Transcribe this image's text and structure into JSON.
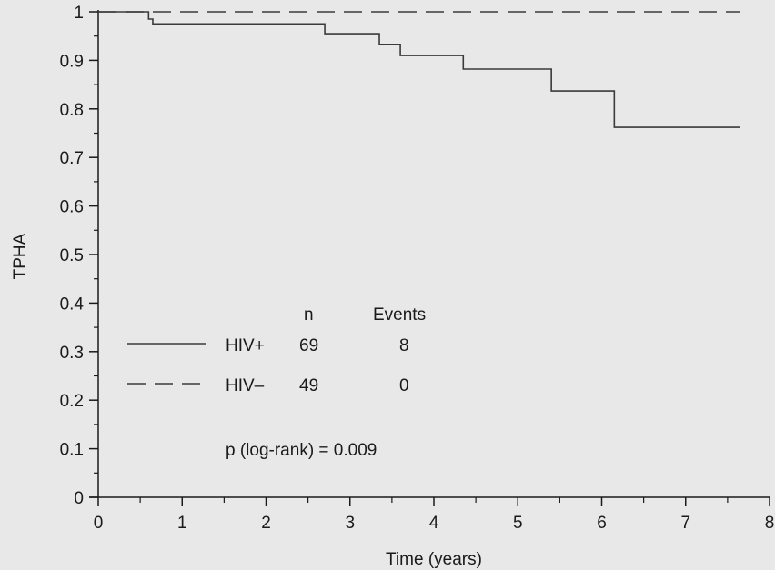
{
  "chart_data": {
    "type": "line",
    "subtype": "step (Kaplan-Meier survival)",
    "title": "",
    "xlabel": "Time (years)",
    "ylabel": "TPHA",
    "xlim": [
      0,
      8
    ],
    "ylim": [
      0,
      1
    ],
    "x_ticks": [
      0,
      1,
      2,
      3,
      4,
      5,
      6,
      7,
      8
    ],
    "y_ticks": [
      0,
      0.1,
      0.2,
      0.3,
      0.4,
      0.5,
      0.6,
      0.7,
      0.8,
      0.9,
      1
    ],
    "y_tick_labels": [
      "0",
      "0.1",
      "0.2",
      "0.3",
      "0.4",
      "0.5",
      "0.6",
      "0.7",
      "0.8",
      "0.9",
      "1"
    ],
    "x_tick_labels": [
      "0",
      "1",
      "2",
      "3",
      "4",
      "5",
      "6",
      "7",
      "8"
    ],
    "grid": false,
    "series": [
      {
        "name": "HIV+",
        "style": "solid",
        "color": "#3a3a3a",
        "steps": [
          [
            0,
            1.0
          ],
          [
            0.6,
            0.985
          ],
          [
            0.65,
            0.975
          ],
          [
            2.7,
            0.955
          ],
          [
            3.35,
            0.933
          ],
          [
            3.6,
            0.91
          ],
          [
            4.35,
            0.882
          ],
          [
            5.4,
            0.837
          ],
          [
            6.15,
            0.762
          ],
          [
            7.65,
            0.762
          ]
        ]
      },
      {
        "name": "HIV−",
        "style": "dashed",
        "color": "#3a3a3a",
        "steps": [
          [
            0,
            1.0
          ],
          [
            7.65,
            1.0
          ]
        ]
      }
    ],
    "legend": {
      "position": "lower-left",
      "headers": {
        "n": "n",
        "events": "Events"
      },
      "rows": [
        {
          "label": "HIV+",
          "n": "69",
          "events": "8",
          "style": "solid"
        },
        {
          "label": "HIV–",
          "n": "49",
          "events": "0",
          "style": "dashed"
        }
      ],
      "annotation": "p (log-rank) = 0.009"
    }
  }
}
